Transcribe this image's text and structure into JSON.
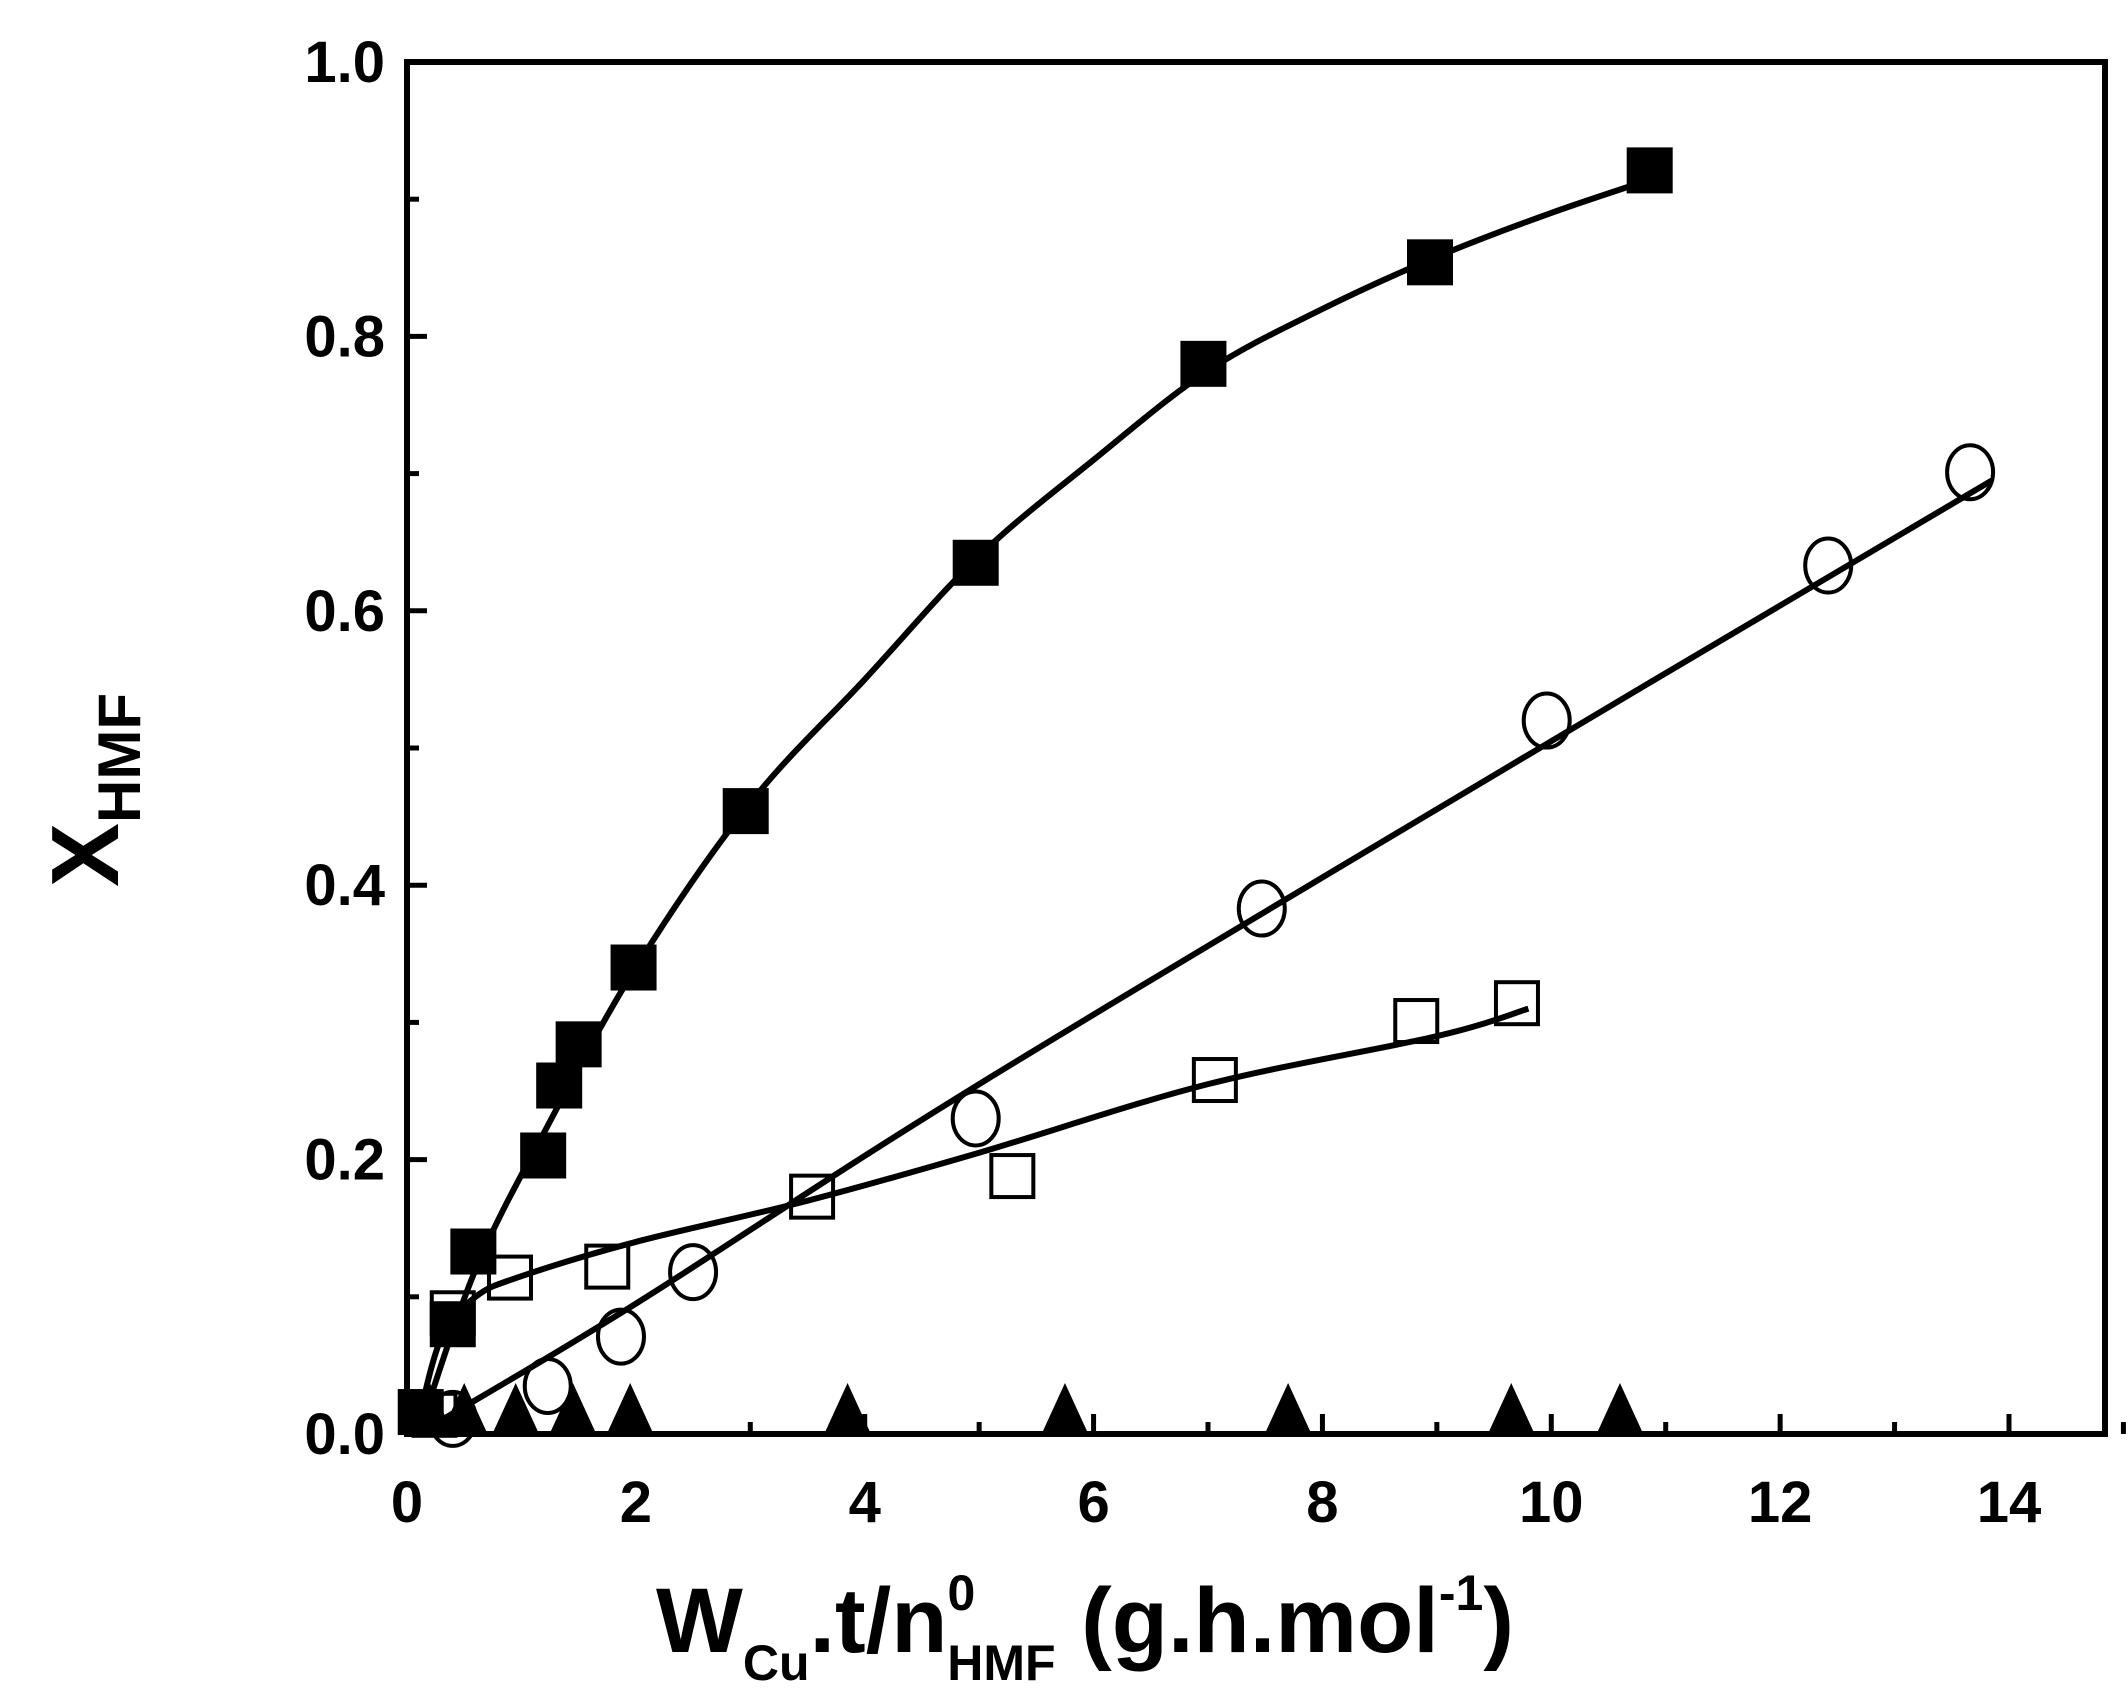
{
  "chart_data": {
    "type": "scatter",
    "title": "",
    "xlabel": {
      "main": "W",
      "sub1": "Cu",
      "mid": ".t/n",
      "sup": "0",
      "sub2": "HMF",
      "tail": " (g.h.mol",
      "sup2": "-1",
      "close": ")"
    },
    "ylabel": {
      "main": "X",
      "sub": "HMF"
    },
    "xlim": [
      0,
      15
    ],
    "ylim": [
      0,
      1.0
    ],
    "xticks": [
      "0",
      "2",
      "4",
      "6",
      "8",
      "10",
      "12",
      "14"
    ],
    "xtick_values": [
      0,
      2,
      4,
      6,
      8,
      10,
      12,
      14
    ],
    "yticks": [
      "0.0",
      "0.2",
      "0.4",
      "0.6",
      "0.8",
      "1.0"
    ],
    "ytick_values": [
      0,
      0.2,
      0.4,
      0.6,
      0.8,
      1.0
    ],
    "grid": false,
    "series": [
      {
        "name": "filled-squares",
        "marker": "square-filled",
        "x": [
          0.12,
          0.4,
          0.58,
          1.19,
          1.33,
          1.5,
          1.98,
          2.96,
          4.97,
          6.96,
          8.94,
          10.86
        ],
        "y": [
          0.016,
          0.08,
          0.133,
          0.203,
          0.254,
          0.284,
          0.34,
          0.454,
          0.635,
          0.78,
          0.854,
          0.921
        ],
        "fit": [
          [
            0.1,
            0
          ],
          [
            0.6,
            0.12
          ],
          [
            1.2,
            0.22
          ],
          [
            2,
            0.34
          ],
          [
            3,
            0.46
          ],
          [
            4,
            0.55
          ],
          [
            5,
            0.64
          ],
          [
            6,
            0.71
          ],
          [
            7,
            0.775
          ],
          [
            8,
            0.82
          ],
          [
            9,
            0.858
          ],
          [
            10,
            0.89
          ],
          [
            11,
            0.918
          ]
        ]
      },
      {
        "name": "open-circles",
        "marker": "circle-open",
        "x": [
          0.4,
          1.23,
          1.87,
          2.5,
          4.97,
          7.47,
          9.96,
          12.42,
          13.66
        ],
        "y": [
          0.011,
          0.035,
          0.071,
          0.118,
          0.23,
          0.383,
          0.52,
          0.633,
          0.701
        ],
        "fit": [
          [
            0.3,
            0.01
          ],
          [
            2,
            0.095
          ],
          [
            5,
            0.255
          ],
          [
            10,
            0.505
          ],
          [
            13.85,
            0.695
          ]
        ]
      },
      {
        "name": "open-squares",
        "marker": "square-open",
        "x": [
          0.24,
          0.4,
          0.9,
          1.75,
          3.54,
          5.29,
          7.06,
          8.82,
          9.7
        ],
        "y": [
          0.014,
          0.088,
          0.114,
          0.122,
          0.173,
          0.188,
          0.258,
          0.301,
          0.314
        ],
        "fit": [
          [
            0.1,
            0.01
          ],
          [
            0.3,
            0.07
          ],
          [
            0.6,
            0.1
          ],
          [
            1,
            0.115
          ],
          [
            2,
            0.14
          ],
          [
            3.5,
            0.17
          ],
          [
            5,
            0.205
          ],
          [
            7,
            0.255
          ],
          [
            9,
            0.29
          ],
          [
            9.8,
            0.31
          ]
        ]
      },
      {
        "name": "filled-triangles",
        "marker": "triangle-filled",
        "x": [
          0.2,
          0.5,
          0.95,
          1.45,
          1.95,
          3.85,
          5.75,
          7.7,
          9.65,
          10.6
        ],
        "y": [
          0.01,
          0.01,
          0.01,
          0.01,
          0.01,
          0.01,
          0.01,
          0.01,
          0.01,
          0.01
        ]
      }
    ]
  }
}
